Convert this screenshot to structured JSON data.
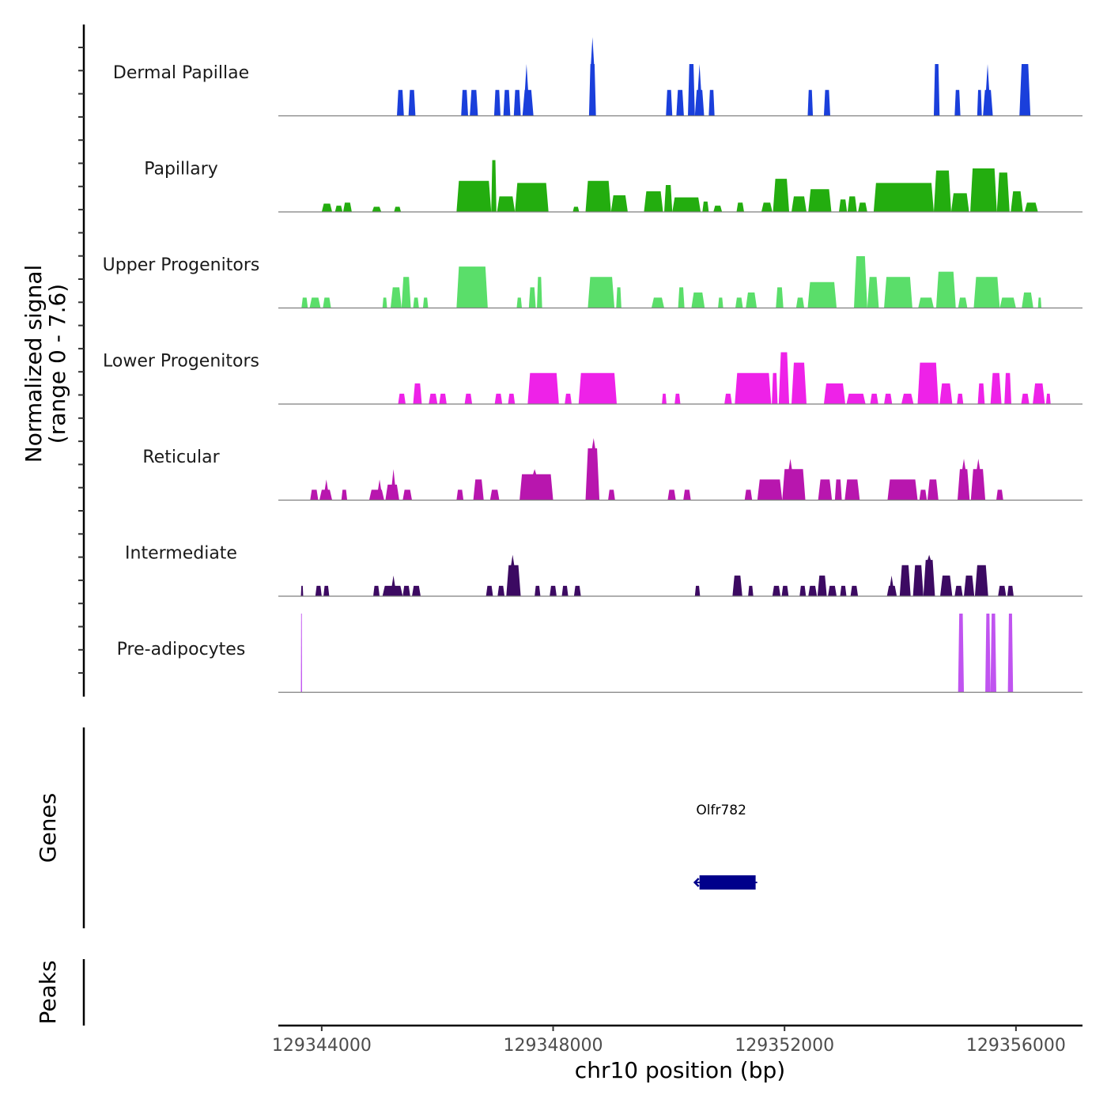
{
  "chart_data": {
    "type": "area",
    "title": "",
    "xlabel": "chr10 position (bp)",
    "ylabel": "Normalized signal\n(range 0 - 7.6)",
    "ylabel_lines": [
      "Normalized signal",
      "(range 0 - 7.6)"
    ],
    "ylim": [
      0,
      7.6
    ],
    "xlim": [
      129343250,
      129357150
    ],
    "x_ticks": [
      129344000,
      129348000,
      129352000,
      129356000
    ],
    "x_tick_labels": [
      "129344000",
      "129348000",
      "129352000",
      "129356000"
    ],
    "grid": false,
    "tracks": [
      {
        "name": "Dermal Papillae",
        "color": "#1a3fdb",
        "peaks": [
          [
            129345300,
            129345420,
            2.5
          ],
          [
            129345500,
            129345620,
            2.5
          ],
          [
            129346410,
            129346530,
            2.5
          ],
          [
            129346560,
            129346700,
            2.5
          ],
          [
            129346980,
            129347090,
            2.5
          ],
          [
            129347140,
            129347260,
            2.5
          ],
          [
            129347320,
            129347440,
            2.5
          ],
          [
            129347470,
            129347660,
            2.5,
            129347540,
            5.0
          ],
          [
            129348620,
            129348740,
            5.0,
            129348680,
            7.6
          ],
          [
            129349950,
            129350060,
            2.5
          ],
          [
            129350130,
            129350260,
            2.5
          ],
          [
            129350330,
            129350450,
            5.0
          ],
          [
            129350450,
            129350610,
            2.5,
            129350530,
            5.0
          ],
          [
            129350690,
            129350790,
            2.5
          ],
          [
            129352400,
            129352490,
            2.5
          ],
          [
            129352680,
            129352790,
            2.5
          ],
          [
            129354580,
            129354680,
            5.0
          ],
          [
            129354940,
            129355040,
            2.5
          ],
          [
            129355330,
            129355410,
            2.5
          ],
          [
            129355430,
            129355600,
            2.5,
            129355510,
            5.0
          ],
          [
            129356060,
            129356250,
            5.0
          ]
        ]
      },
      {
        "name": "Papillary",
        "color": "#23ad0f",
        "peaks": [
          [
            129344000,
            129344180,
            0.8
          ],
          [
            129344230,
            129344360,
            0.6
          ],
          [
            129344370,
            129344520,
            0.9
          ],
          [
            129344870,
            129345030,
            0.5
          ],
          [
            129345250,
            129345370,
            0.5
          ],
          [
            129346330,
            129346930,
            3.0
          ],
          [
            129346930,
            129347020,
            5.0
          ],
          [
            129347030,
            129347340,
            1.5
          ],
          [
            129347340,
            129347920,
            2.8
          ],
          [
            129348340,
            129348450,
            0.5
          ],
          [
            129348560,
            129349000,
            3.0
          ],
          [
            129349000,
            129349290,
            1.6
          ],
          [
            129349570,
            129349900,
            2.0
          ],
          [
            129349920,
            129350060,
            2.6
          ],
          [
            129350060,
            129350550,
            1.4
          ],
          [
            129350580,
            129350690,
            1.0
          ],
          [
            129350770,
            129350920,
            0.6
          ],
          [
            129351170,
            129351300,
            0.9
          ],
          [
            129351600,
            129351790,
            0.9
          ],
          [
            129351800,
            129352080,
            3.2
          ],
          [
            129352120,
            129352380,
            1.5
          ],
          [
            129352410,
            129352810,
            2.2
          ],
          [
            129352940,
            129353080,
            1.2
          ],
          [
            129353090,
            129353250,
            1.5
          ],
          [
            129353270,
            129353430,
            0.9
          ],
          [
            129353540,
            129354580,
            2.8
          ],
          [
            129354580,
            129354880,
            4.0
          ],
          [
            129354880,
            129355190,
            1.8
          ],
          [
            129355210,
            129355670,
            4.2
          ],
          [
            129355670,
            129355890,
            3.8
          ],
          [
            129355910,
            129356120,
            2.0
          ],
          [
            129356150,
            129356380,
            0.9
          ]
        ]
      },
      {
        "name": "Upper Progenitors",
        "color": "#5ade6a",
        "peaks": [
          [
            129343650,
            129343760,
            1.0
          ],
          [
            129343790,
            129343980,
            1.0
          ],
          [
            129344020,
            129344160,
            1.0
          ],
          [
            129345050,
            129345130,
            1.0
          ],
          [
            129345190,
            129345380,
            2.0
          ],
          [
            129345380,
            129345540,
            3.0
          ],
          [
            129345580,
            129345680,
            1.0
          ],
          [
            129345750,
            129345840,
            1.0
          ],
          [
            129346330,
            129346870,
            4.0
          ],
          [
            129347370,
            129347460,
            1.0
          ],
          [
            129347580,
            129347700,
            2.0
          ],
          [
            129347720,
            129347810,
            3.0
          ],
          [
            129348600,
            129349060,
            3.0
          ],
          [
            129349090,
            129349180,
            2.0
          ],
          [
            129349700,
            129349920,
            1.0
          ],
          [
            129350160,
            129350270,
            2.0
          ],
          [
            129350390,
            129350620,
            1.5
          ],
          [
            129350850,
            129350940,
            1.0
          ],
          [
            129351150,
            129351280,
            1.0
          ],
          [
            129351330,
            129351520,
            1.5
          ],
          [
            129351850,
            129351980,
            2.0
          ],
          [
            129352200,
            129352340,
            1.0
          ],
          [
            129352400,
            129352900,
            2.5
          ],
          [
            129353200,
            129353430,
            5.0
          ],
          [
            129353430,
            129353630,
            3.0
          ],
          [
            129353720,
            129354210,
            3.0
          ],
          [
            129354310,
            129354580,
            1.0
          ],
          [
            129354620,
            129354960,
            3.5
          ],
          [
            129355000,
            129355160,
            1.0
          ],
          [
            129355270,
            129355720,
            3.0
          ],
          [
            129355720,
            129356000,
            1.0
          ],
          [
            129356100,
            129356300,
            1.5
          ],
          [
            129356380,
            129356440,
            1.0
          ]
        ]
      },
      {
        "name": "Lower Progenitors",
        "color": "#ee22e8",
        "peaks": [
          [
            129345320,
            129345450,
            1.0
          ],
          [
            129345580,
            129345730,
            2.0
          ],
          [
            129345850,
            129346000,
            1.0
          ],
          [
            129346030,
            129346160,
            1.0
          ],
          [
            129346470,
            129346600,
            1.0
          ],
          [
            129346990,
            129347120,
            1.0
          ],
          [
            129347220,
            129347340,
            1.0
          ],
          [
            129347560,
            129348100,
            3.0
          ],
          [
            129348200,
            129348320,
            1.0
          ],
          [
            129348440,
            129349100,
            3.0
          ],
          [
            129349880,
            129349960,
            1.0
          ],
          [
            129350100,
            129350200,
            1.0
          ],
          [
            129350960,
            129351090,
            1.0
          ],
          [
            129351140,
            129351770,
            3.0
          ],
          [
            129351780,
            129351880,
            3.0
          ],
          [
            129351900,
            129352080,
            5.0
          ],
          [
            129352120,
            129352380,
            4.0
          ],
          [
            129352680,
            129353050,
            2.0
          ],
          [
            129353070,
            129353400,
            1.0
          ],
          [
            129353480,
            129353620,
            1.0
          ],
          [
            129353720,
            129353860,
            1.0
          ],
          [
            129354020,
            129354230,
            1.0
          ],
          [
            129354300,
            129354660,
            4.0
          ],
          [
            129354680,
            129354900,
            2.0
          ],
          [
            129354980,
            129355090,
            1.0
          ],
          [
            129355340,
            129355460,
            2.0
          ],
          [
            129355560,
            129355750,
            3.0
          ],
          [
            129355800,
            129355920,
            3.0
          ],
          [
            129356090,
            129356230,
            1.0
          ],
          [
            129356290,
            129356500,
            2.0
          ],
          [
            129356520,
            129356600,
            1.0
          ]
        ]
      },
      {
        "name": "Reticular",
        "color": "#b816ae",
        "peaks": [
          [
            129343800,
            129343940,
            1.0
          ],
          [
            129343960,
            129344180,
            1.0,
            129344080,
            2.0
          ],
          [
            129344340,
            129344440,
            1.0
          ],
          [
            129344820,
            129345080,
            1.0,
            129345000,
            2.0
          ],
          [
            129345100,
            129345340,
            1.5,
            129345240,
            3.0
          ],
          [
            129345400,
            129345560,
            1.0
          ],
          [
            129346330,
            129346450,
            1.0
          ],
          [
            129346620,
            129346800,
            2.0
          ],
          [
            129346910,
            129347070,
            1.0
          ],
          [
            129347420,
            129348000,
            2.5,
            129347680,
            3.0
          ],
          [
            129348560,
            129348800,
            5.0,
            129348700,
            6.0
          ],
          [
            129348950,
            129349070,
            1.0
          ],
          [
            129349980,
            129350120,
            1.0
          ],
          [
            129350250,
            129350380,
            1.0
          ],
          [
            129351310,
            129351440,
            1.0
          ],
          [
            129351530,
            129351960,
            2.0
          ],
          [
            129351960,
            129352360,
            3.0,
            129352100,
            4.0
          ],
          [
            129352580,
            129352820,
            2.0
          ],
          [
            129352870,
            129352990,
            2.0
          ],
          [
            129353040,
            129353300,
            2.0
          ],
          [
            129353780,
            129354300,
            2.0
          ],
          [
            129354330,
            129354460,
            1.0
          ],
          [
            129354470,
            129354660,
            2.0
          ],
          [
            129354990,
            129355200,
            3.0,
            129355100,
            4.0
          ],
          [
            129355220,
            129355470,
            3.0,
            129355350,
            4.0
          ],
          [
            129355660,
            129355780,
            1.0
          ]
        ]
      },
      {
        "name": "Intermediate",
        "color": "#3c0a62",
        "peaks": [
          [
            129343640,
            129343680,
            1.0
          ],
          [
            129343890,
            129344000,
            1.0
          ],
          [
            129344030,
            129344130,
            1.0
          ],
          [
            129344890,
            129345000,
            1.0
          ],
          [
            129345050,
            129345400,
            1.0,
            129345240,
            2.0
          ],
          [
            129345400,
            129345530,
            1.0
          ],
          [
            129345560,
            129345710,
            1.0
          ],
          [
            129346840,
            129346960,
            1.0
          ],
          [
            129347040,
            129347160,
            1.0
          ],
          [
            129347190,
            129347440,
            3.0,
            129347300,
            4.0
          ],
          [
            129347680,
            129347780,
            1.0
          ],
          [
            129347940,
            129348060,
            1.0
          ],
          [
            129348150,
            129348260,
            1.0
          ],
          [
            129348360,
            129348480,
            1.0
          ],
          [
            129350450,
            129350540,
            1.0
          ],
          [
            129351100,
            129351270,
            2.0
          ],
          [
            129351370,
            129351460,
            1.0
          ],
          [
            129351790,
            129351930,
            1.0
          ],
          [
            129351950,
            129352070,
            1.0
          ],
          [
            129352260,
            129352370,
            1.0
          ],
          [
            129352410,
            129352560,
            1.0
          ],
          [
            129352570,
            129352730,
            2.0
          ],
          [
            129352750,
            129352900,
            1.0
          ],
          [
            129352960,
            129353070,
            1.0
          ],
          [
            129353140,
            129353270,
            1.0
          ],
          [
            129353770,
            129353940,
            1.0,
            129353850,
            2.0
          ],
          [
            129353990,
            129354180,
            3.0
          ],
          [
            129354220,
            129354400,
            3.0,
            129354300,
            3.0
          ],
          [
            129354400,
            129354600,
            3.5,
            129354500,
            4.0
          ],
          [
            129354690,
            129354900,
            2.0
          ],
          [
            129354940,
            129355080,
            1.0
          ],
          [
            129355100,
            129355280,
            2.0
          ],
          [
            129355290,
            129355520,
            3.0
          ],
          [
            129355690,
            129355830,
            1.0
          ],
          [
            129355850,
            129355960,
            1.0
          ]
        ]
      },
      {
        "name": "Pre-adipocytes",
        "color": "#c054f0",
        "peaks": [
          [
            129343640,
            129343660,
            7.6
          ],
          [
            129355000,
            129355100,
            7.6
          ],
          [
            129355470,
            129355560,
            7.6
          ],
          [
            129355560,
            129355660,
            7.6
          ],
          [
            129355860,
            129355950,
            7.6
          ]
        ]
      }
    ],
    "genes_track": {
      "label": "Genes",
      "genes": [
        {
          "name": "Olfr782",
          "start": 129350530,
          "end": 129351500,
          "strand": "-",
          "color": "#00008b"
        }
      ]
    },
    "peaks_track": {
      "label": "Peaks",
      "peaks": []
    }
  }
}
